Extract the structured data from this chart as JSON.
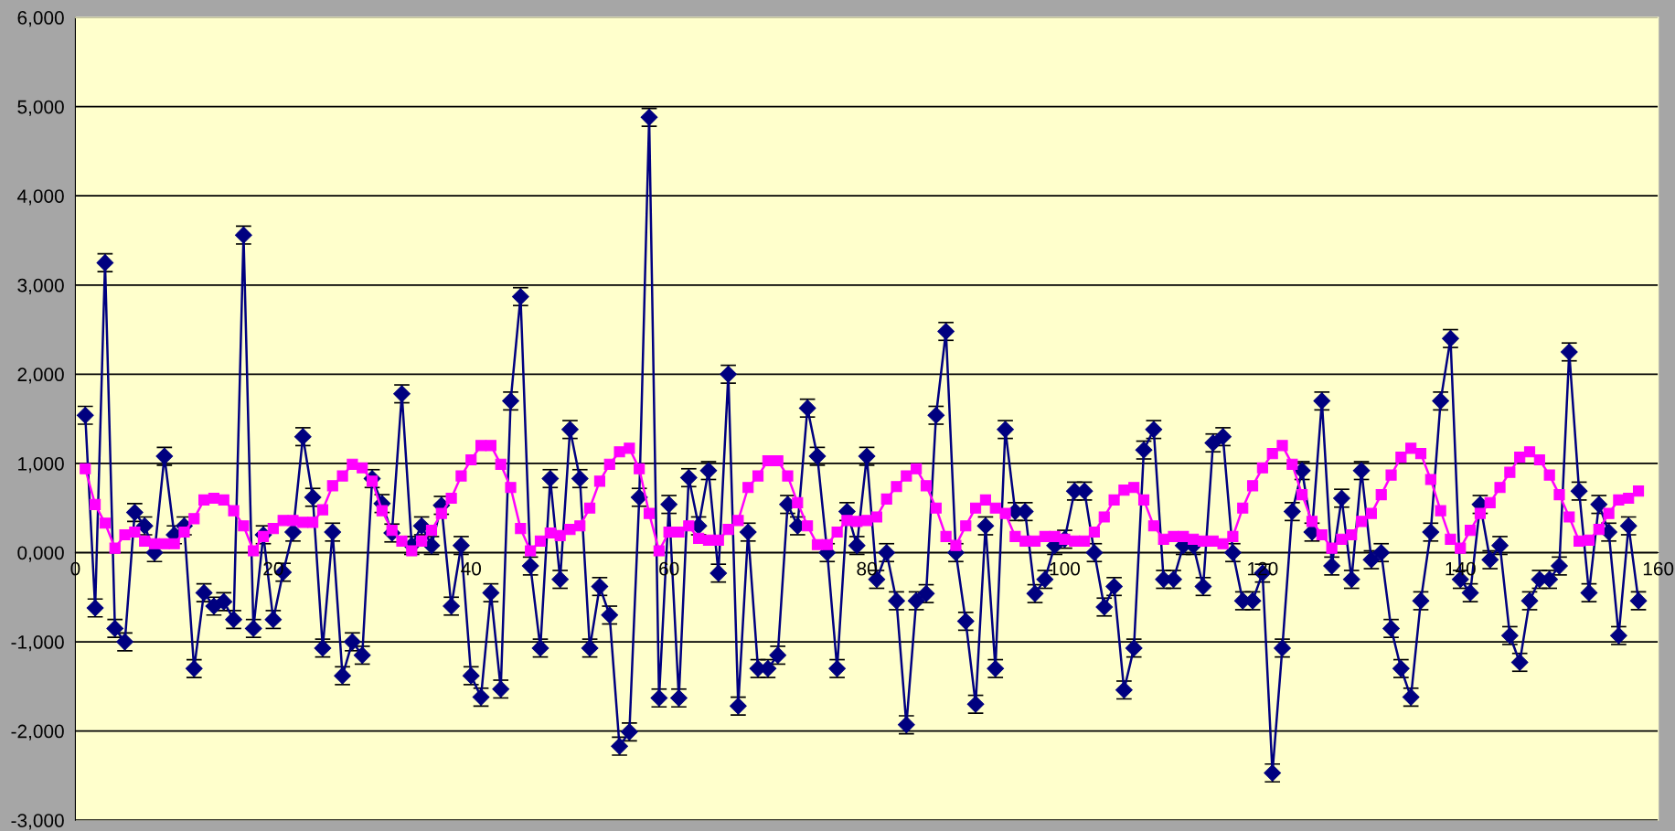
{
  "chart_data": {
    "type": "line",
    "x": [
      1,
      2,
      3,
      4,
      5,
      6,
      7,
      8,
      9,
      10,
      11,
      12,
      13,
      14,
      15,
      16,
      17,
      18,
      19,
      20,
      21,
      22,
      23,
      24,
      25,
      26,
      27,
      28,
      29,
      30,
      31,
      32,
      33,
      34,
      35,
      36,
      37,
      38,
      39,
      40,
      41,
      42,
      43,
      44,
      45,
      46,
      47,
      48,
      49,
      50,
      51,
      52,
      53,
      54,
      55,
      56,
      57,
      58,
      59,
      60,
      61,
      62,
      63,
      64,
      65,
      66,
      67,
      68,
      69,
      70,
      71,
      72,
      73,
      74,
      75,
      76,
      77,
      78,
      79,
      80,
      81,
      82,
      83,
      84,
      85,
      86,
      87,
      88,
      89,
      90,
      91,
      92,
      93,
      94,
      95,
      96,
      97,
      98,
      99,
      100,
      101,
      102,
      103,
      104,
      105,
      106,
      107,
      108,
      109,
      110,
      111,
      112,
      113,
      114,
      115,
      116,
      117,
      118,
      119,
      120,
      121,
      122,
      123,
      124,
      125,
      126,
      127,
      128,
      129,
      130,
      131,
      132,
      133,
      134,
      135,
      136,
      137,
      138,
      139,
      140,
      141,
      142,
      143,
      144,
      145,
      146,
      147,
      148,
      149,
      150,
      151,
      152,
      153,
      154,
      155,
      156,
      157,
      158
    ],
    "series": [
      {
        "color": "#000080",
        "marker": "diamond",
        "errors": [
          100,
          100,
          100,
          100,
          100,
          100,
          100,
          100,
          100,
          100,
          100,
          100,
          100,
          100,
          100,
          100,
          100,
          100,
          100,
          100,
          100,
          100,
          100,
          100,
          100,
          100,
          100,
          100,
          100,
          100,
          100,
          100,
          100,
          100,
          100,
          100,
          100,
          100,
          100,
          100,
          100,
          100,
          100,
          100,
          100,
          100,
          100,
          100,
          100,
          100,
          100,
          100,
          100,
          100,
          100,
          100,
          100,
          100,
          100,
          100,
          100,
          100,
          100,
          100,
          100,
          100,
          100,
          100,
          100,
          100,
          100,
          100,
          100,
          100,
          100,
          100,
          100,
          100,
          100,
          100,
          100,
          100,
          100,
          100,
          100,
          100,
          100,
          100,
          100,
          100,
          100,
          100,
          100,
          100,
          100,
          100,
          100,
          100,
          100,
          100,
          100,
          100,
          100,
          100,
          100,
          100,
          100,
          100,
          100,
          100,
          100,
          100,
          100,
          100,
          100,
          100,
          100,
          100,
          100,
          100,
          100,
          100,
          100,
          100,
          100,
          100,
          100,
          100,
          100,
          100,
          100,
          100,
          100,
          100,
          100,
          100,
          100,
          100,
          100,
          100,
          100,
          100,
          100,
          100,
          100,
          100,
          100,
          100,
          100,
          100,
          100,
          100,
          100,
          100,
          100,
          100,
          100,
          100
        ],
        "values": [
          1540,
          -620,
          3250,
          -850,
          -1000,
          450,
          300,
          0,
          1080,
          200,
          300,
          -1300,
          -450,
          -600,
          -550,
          -750,
          3560,
          -850,
          200,
          -750,
          -220,
          230,
          1300,
          620,
          -1070,
          230,
          -1380,
          -1000,
          -1150,
          830,
          550,
          220,
          1780,
          80,
          300,
          80,
          530,
          -600,
          80,
          -1380,
          -1620,
          -450,
          -1530,
          1700,
          2870,
          -150,
          -1070,
          830,
          -300,
          1380,
          830,
          -1070,
          -380,
          -700,
          -2170,
          -2010,
          620,
          4880,
          -1630,
          540,
          -1630,
          840,
          300,
          920,
          -230,
          2000,
          -1720,
          230,
          -1300,
          -1300,
          -1150,
          540,
          300,
          1620,
          1080,
          0,
          -1300,
          460,
          80,
          1080,
          -300,
          0,
          -540,
          -1930,
          -540,
          -460,
          1540,
          2480,
          0,
          -770,
          -1700,
          300,
          -1300,
          1380,
          460,
          460,
          -460,
          -300,
          80,
          150,
          690,
          690,
          0,
          -610,
          -380,
          -1540,
          -1070,
          1150,
          1380,
          -300,
          -300,
          80,
          80,
          -380,
          1230,
          1300,
          0,
          -540,
          -540,
          -230,
          -2470,
          -1070,
          460,
          920,
          230,
          1700,
          -150,
          610,
          -300,
          920,
          -80,
          0,
          -850,
          -1300,
          -1620,
          -540,
          230,
          1700,
          2400,
          -300,
          -450,
          540,
          -80,
          80,
          -930,
          -1230,
          -540,
          -300,
          -300,
          -150,
          2250,
          690,
          -450,
          540,
          230,
          -930,
          300,
          -540
        ]
      },
      {
        "color": "#ff00ff",
        "marker": "square",
        "values": [
          940,
          540,
          330,
          50,
          200,
          230,
          130,
          100,
          100,
          100,
          230,
          380,
          590,
          610,
          590,
          470,
          300,
          20,
          180,
          270,
          360,
          360,
          340,
          340,
          480,
          750,
          860,
          990,
          950,
          800,
          470,
          250,
          130,
          20,
          130,
          250,
          440,
          610,
          860,
          1040,
          1200,
          1200,
          990,
          730,
          270,
          20,
          130,
          220,
          190,
          260,
          300,
          500,
          800,
          990,
          1130,
          1170,
          940,
          440,
          20,
          230,
          230,
          300,
          160,
          140,
          140,
          260,
          360,
          730,
          860,
          1030,
          1030,
          860,
          560,
          300,
          90,
          90,
          230,
          360,
          350,
          360,
          400,
          600,
          740,
          860,
          940,
          750,
          500,
          180,
          80,
          300,
          500,
          590,
          500,
          440,
          180,
          130,
          130,
          180,
          180,
          150,
          130,
          130,
          230,
          400,
          590,
          700,
          730,
          590,
          300,
          150,
          180,
          180,
          150,
          130,
          130,
          100,
          180,
          500,
          750,
          950,
          1110,
          1200,
          990,
          650,
          350,
          200,
          50,
          150,
          200,
          350,
          440,
          650,
          870,
          1070,
          1170,
          1110,
          820,
          470,
          150,
          50,
          250,
          440,
          560,
          730,
          900,
          1070,
          1130,
          1040,
          870,
          650,
          400,
          130,
          140,
          260,
          440,
          590,
          610,
          690
        ]
      }
    ],
    "xlim": [
      0,
      160
    ],
    "xticks": [
      0,
      20,
      40,
      60,
      80,
      100,
      120,
      140,
      160
    ],
    "ylim": [
      -3000,
      6000
    ],
    "yticks": [
      {
        "value": -3000,
        "label": "-3,000"
      },
      {
        "value": -2000,
        "label": "-2,000"
      },
      {
        "value": -1000,
        "label": "-1,000"
      },
      {
        "value": 0,
        "label": "0,000"
      },
      {
        "value": 1000,
        "label": "1,000"
      },
      {
        "value": 2000,
        "label": "2,000"
      },
      {
        "value": 3000,
        "label": "3,000"
      },
      {
        "value": 4000,
        "label": "4,000"
      },
      {
        "value": 5000,
        "label": "5,000"
      },
      {
        "value": 6000,
        "label": "6,000"
      }
    ],
    "grid": "y"
  }
}
